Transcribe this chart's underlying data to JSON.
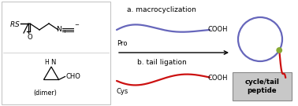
{
  "bg_color": "#ffffff",
  "border_color": "#c0c0c0",
  "blue_color": "#6666bb",
  "red_color": "#cc1111",
  "green_dot_color": "#88aa33",
  "black": "#000000",
  "gray_box_face": "#c8c8c8",
  "gray_box_edge": "#888888",
  "label_a": "a. macrocyclization",
  "label_b": "b. tail ligation",
  "label_pro": "Pro",
  "label_cys": "Cys",
  "label_cooh1": "COOH",
  "label_cooh2": "COOH",
  "label_box": "cycle/tail\npeptide",
  "figsize": [
    3.78,
    1.35
  ],
  "dpi": 100
}
